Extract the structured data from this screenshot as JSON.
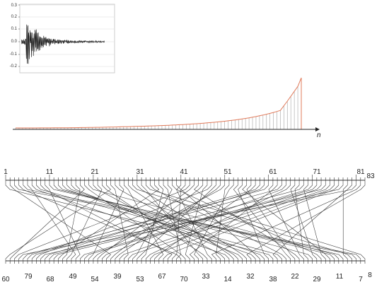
{
  "waveform": {
    "y_ticks": [
      "0.3",
      "0.2",
      "0.1",
      "0.0",
      "-0.1",
      "-0.2"
    ]
  },
  "sorted_chart": {
    "axis_label": "n"
  },
  "permutation": {
    "top_labels": [
      "1",
      "11",
      "21",
      "31",
      "41",
      "51",
      "61",
      "71",
      "81",
      "83"
    ],
    "bottom_labels": [
      "60",
      "79",
      "68",
      "49",
      "54",
      "39",
      "53",
      "67",
      "70",
      "33",
      "14",
      "32",
      "38",
      "22",
      "29",
      "11",
      "7",
      "8"
    ]
  },
  "colors": {
    "stem_line": "#b0b0b0",
    "envelope_line": "#e07a5a",
    "ink": "#222222",
    "grid": "#dddddd"
  }
}
